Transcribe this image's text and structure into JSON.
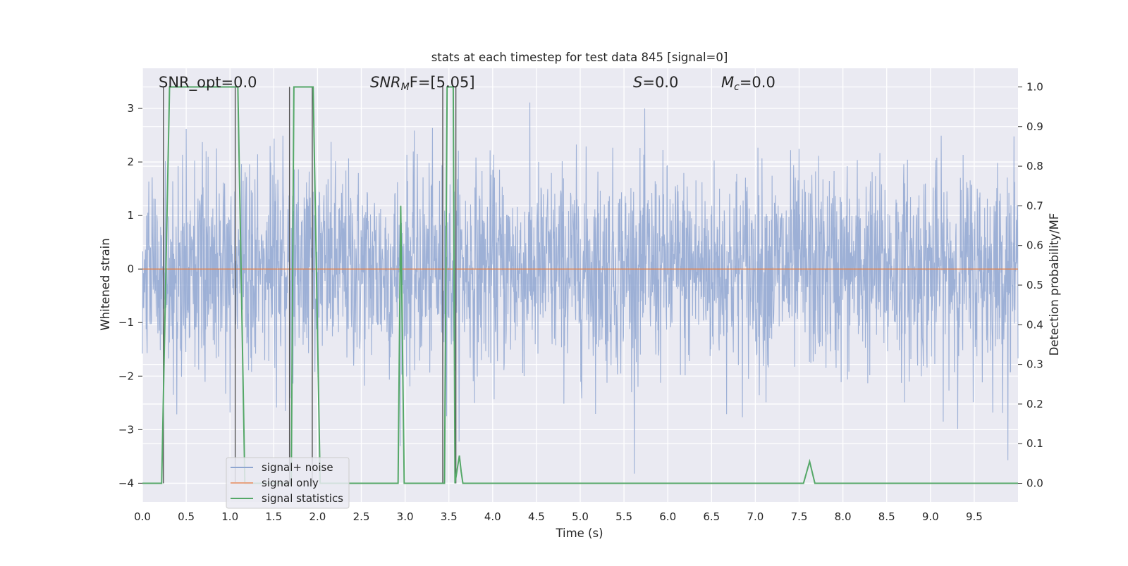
{
  "chart_data": {
    "type": "line",
    "title": "stats at each timestep for test data 845 [signal=0]",
    "xlabel": "Time (s)",
    "ylabel": "Whitened strain",
    "y2label": "Detection probability/MF",
    "xlim": [
      0.0,
      10.0
    ],
    "ylim": [
      -4.35,
      3.75
    ],
    "y2lim": [
      -0.047,
      1.047
    ],
    "grid": true,
    "legend_position": "lower-left",
    "x_ticks": [
      "0.0",
      "0.5",
      "1.0",
      "1.5",
      "2.0",
      "2.5",
      "3.0",
      "3.5",
      "4.0",
      "4.5",
      "5.0",
      "5.5",
      "6.0",
      "6.5",
      "7.0",
      "7.5",
      "8.0",
      "8.5",
      "9.0",
      "9.5"
    ],
    "y_ticks": [
      "3",
      "2",
      "1",
      "0",
      "−1",
      "−2",
      "−3",
      "−4"
    ],
    "y2_ticks": [
      "1.0",
      "0.9",
      "0.8",
      "0.7",
      "0.6",
      "0.5",
      "0.4",
      "0.3",
      "0.2",
      "0.1",
      "0.0"
    ],
    "annotations": {
      "snr_opt": "SNR_opt=0.0",
      "snr_mf_main": "SNR",
      "snr_mf_sub": "M",
      "snr_mf_rest": "F=[5.05]",
      "s_main": "S",
      "s_rest": "=0.0",
      "mc_main": "M",
      "mc_sub": "c",
      "mc_rest": "=0.0"
    },
    "legend": [
      {
        "label": "signal+ noise",
        "color": "#8fa6d1"
      },
      {
        "label": "signal only",
        "color": "#e8a382"
      },
      {
        "label": "signal statistics",
        "color": "#55a868"
      }
    ],
    "series": [
      {
        "name": "signal+ noise",
        "color": "#8fa6d1",
        "note": "dense whitened noise, visually about ±1.5 with spikes up to about +3.3 / −4.1",
        "x_range": [
          0.0,
          10.0
        ]
      },
      {
        "name": "signal only",
        "color": "#dd8452",
        "x": [
          0.0,
          10.0
        ],
        "y": [
          0.0,
          0.0
        ]
      },
      {
        "name": "signal statistics",
        "color": "#55a868",
        "axis": "right",
        "x": [
          0.0,
          0.18,
          0.22,
          0.31,
          0.33,
          1.07,
          1.09,
          1.17,
          1.19,
          1.7,
          1.73,
          1.92,
          1.95,
          2.03,
          2.05,
          2.88,
          2.92,
          2.95,
          2.99,
          3.45,
          3.48,
          3.55,
          3.57,
          3.62,
          3.64,
          3.66,
          3.68,
          7.55,
          7.62,
          7.68,
          10.0
        ],
        "y": [
          0.0,
          0.0,
          0.0,
          1.0,
          1.0,
          1.0,
          1.0,
          0.0,
          0.0,
          0.0,
          1.0,
          1.0,
          1.0,
          0.0,
          0.0,
          0.0,
          0.0,
          0.7,
          0.0,
          0.0,
          1.0,
          1.0,
          0.0,
          0.07,
          0.03,
          0.0,
          0.0,
          0.0,
          0.055,
          0.0,
          0.0
        ]
      },
      {
        "name": "detection markers",
        "color": "#555555",
        "x": [
          0.24,
          1.06,
          1.68,
          1.94,
          3.43,
          3.58
        ]
      }
    ]
  }
}
